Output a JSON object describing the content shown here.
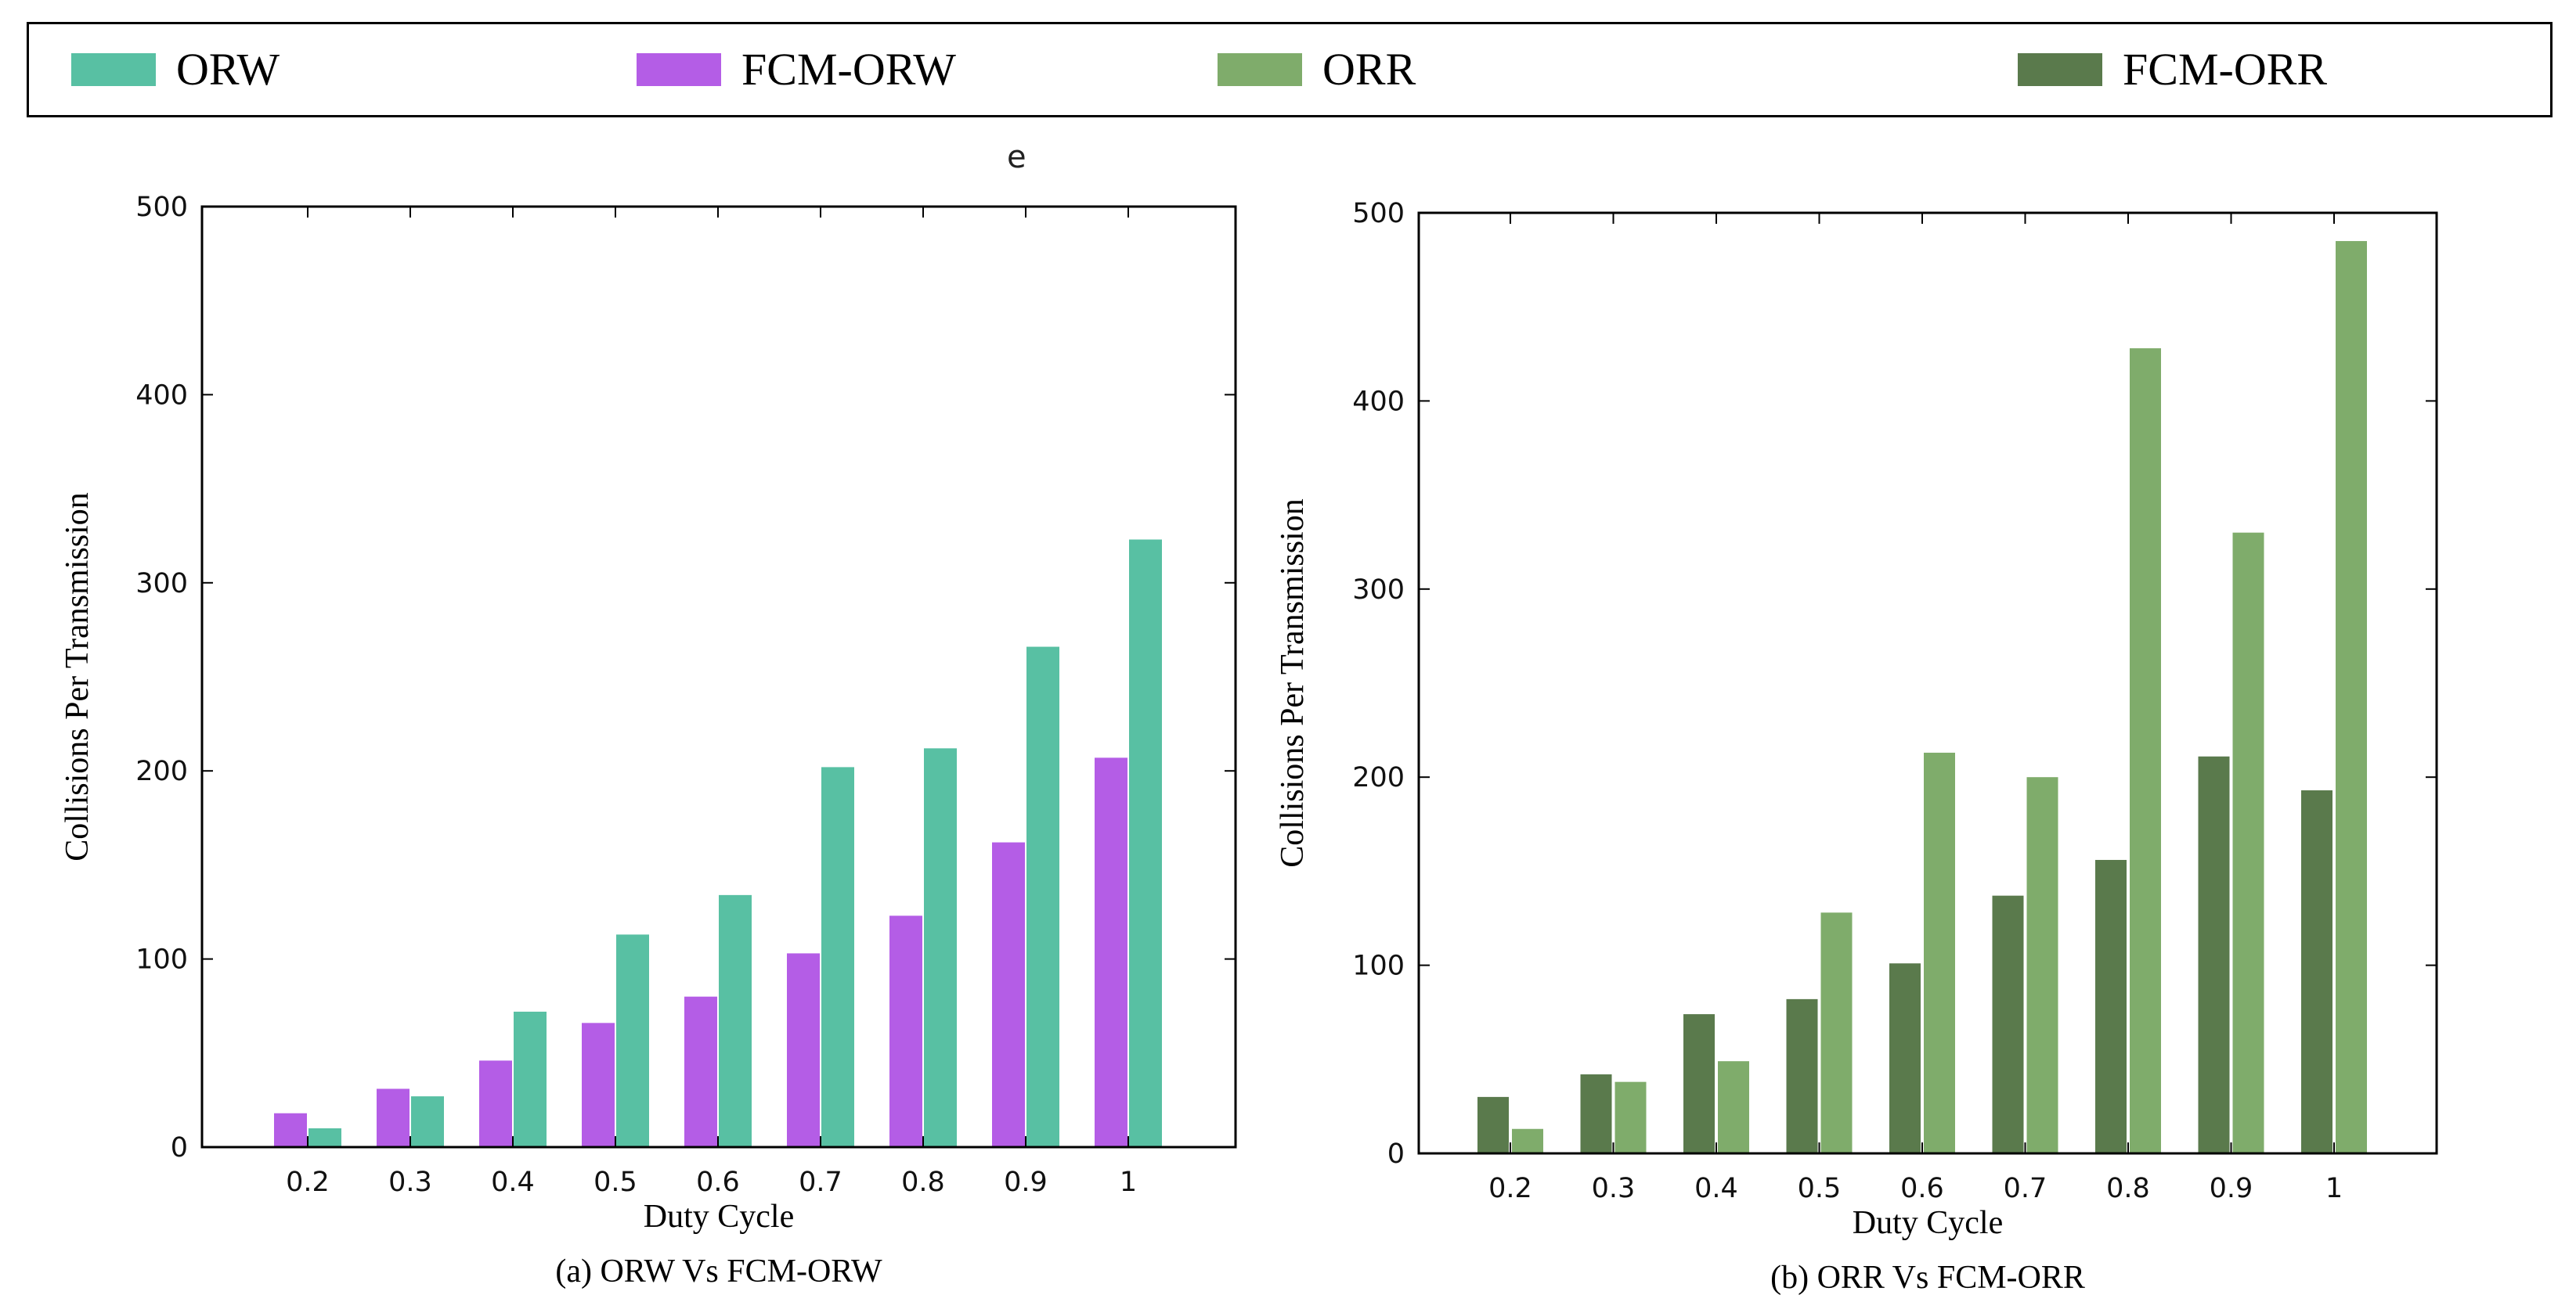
{
  "legend": {
    "items": [
      {
        "label": "ORW",
        "color": "#58c0a3"
      },
      {
        "label": "FCM-ORW",
        "color": "#b45de6"
      },
      {
        "label": "ORR",
        "color": "#7fac6b"
      },
      {
        "label": "FCM-ORR",
        "color": "#5a7a4c"
      }
    ]
  },
  "stray_text": "e",
  "chart_data": [
    {
      "type": "bar",
      "title": "",
      "caption": "(a) ORW Vs FCM-ORW",
      "xlabel": "Duty Cycle",
      "ylabel": "Collisions Per Transmission",
      "ylim": [
        0,
        500
      ],
      "yticks": [
        0,
        100,
        200,
        300,
        400,
        500
      ],
      "categories": [
        "0.2",
        "0.3",
        "0.4",
        "0.5",
        "0.6",
        "0.7",
        "0.8",
        "0.9",
        "1"
      ],
      "series": [
        {
          "name": "FCM-ORW",
          "color": "#b45de6",
          "values": [
            18,
            31,
            46,
            66,
            80,
            103,
            123,
            162,
            207
          ]
        },
        {
          "name": "ORW",
          "color": "#58c0a3",
          "values": [
            10,
            27,
            72,
            113,
            134,
            202,
            212,
            266,
            323
          ]
        }
      ]
    },
    {
      "type": "bar",
      "title": "",
      "caption": "(b) ORR Vs FCM-ORR",
      "xlabel": "Duty Cycle",
      "ylabel": "Collisions Per Transmission",
      "ylim": [
        0,
        500
      ],
      "yticks": [
        0,
        100,
        200,
        300,
        400,
        500
      ],
      "categories": [
        "0.2",
        "0.3",
        "0.4",
        "0.5",
        "0.6",
        "0.7",
        "0.8",
        "0.9",
        "1"
      ],
      "series": [
        {
          "name": "FCM-ORR",
          "color": "#5a7a4c",
          "values": [
            30,
            42,
            74,
            82,
            101,
            137,
            156,
            211,
            193
          ]
        },
        {
          "name": "ORR",
          "color": "#7fac6b",
          "values": [
            13,
            38,
            49,
            128,
            213,
            200,
            428,
            330,
            485
          ]
        }
      ]
    }
  ]
}
